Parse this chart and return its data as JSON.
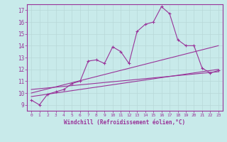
{
  "xlabel": "Windchill (Refroidissement éolien,°C)",
  "background_color": "#c8eaea",
  "grid_color": "#b8d8d8",
  "line_color": "#993399",
  "xlim": [
    -0.5,
    23.5
  ],
  "ylim": [
    8.5,
    17.5
  ],
  "xticks": [
    0,
    1,
    2,
    3,
    4,
    5,
    6,
    7,
    8,
    9,
    10,
    11,
    12,
    13,
    14,
    15,
    16,
    17,
    18,
    19,
    20,
    21,
    22,
    23
  ],
  "yticks": [
    9,
    10,
    11,
    12,
    13,
    14,
    15,
    16,
    17
  ],
  "series1": [
    9.4,
    9.0,
    9.9,
    10.1,
    10.3,
    10.8,
    11.0,
    12.7,
    12.8,
    12.5,
    13.9,
    13.5,
    12.5,
    15.2,
    15.8,
    16.0,
    17.3,
    16.7,
    14.5,
    14.0,
    14.0,
    12.1,
    11.7,
    11.9
  ],
  "series2_x": [
    0,
    23
  ],
  "series2_y": [
    9.7,
    12.0
  ],
  "series3_x": [
    0,
    23
  ],
  "series3_y": [
    10.0,
    14.0
  ],
  "series4_x": [
    0,
    23
  ],
  "series4_y": [
    10.3,
    11.8
  ]
}
